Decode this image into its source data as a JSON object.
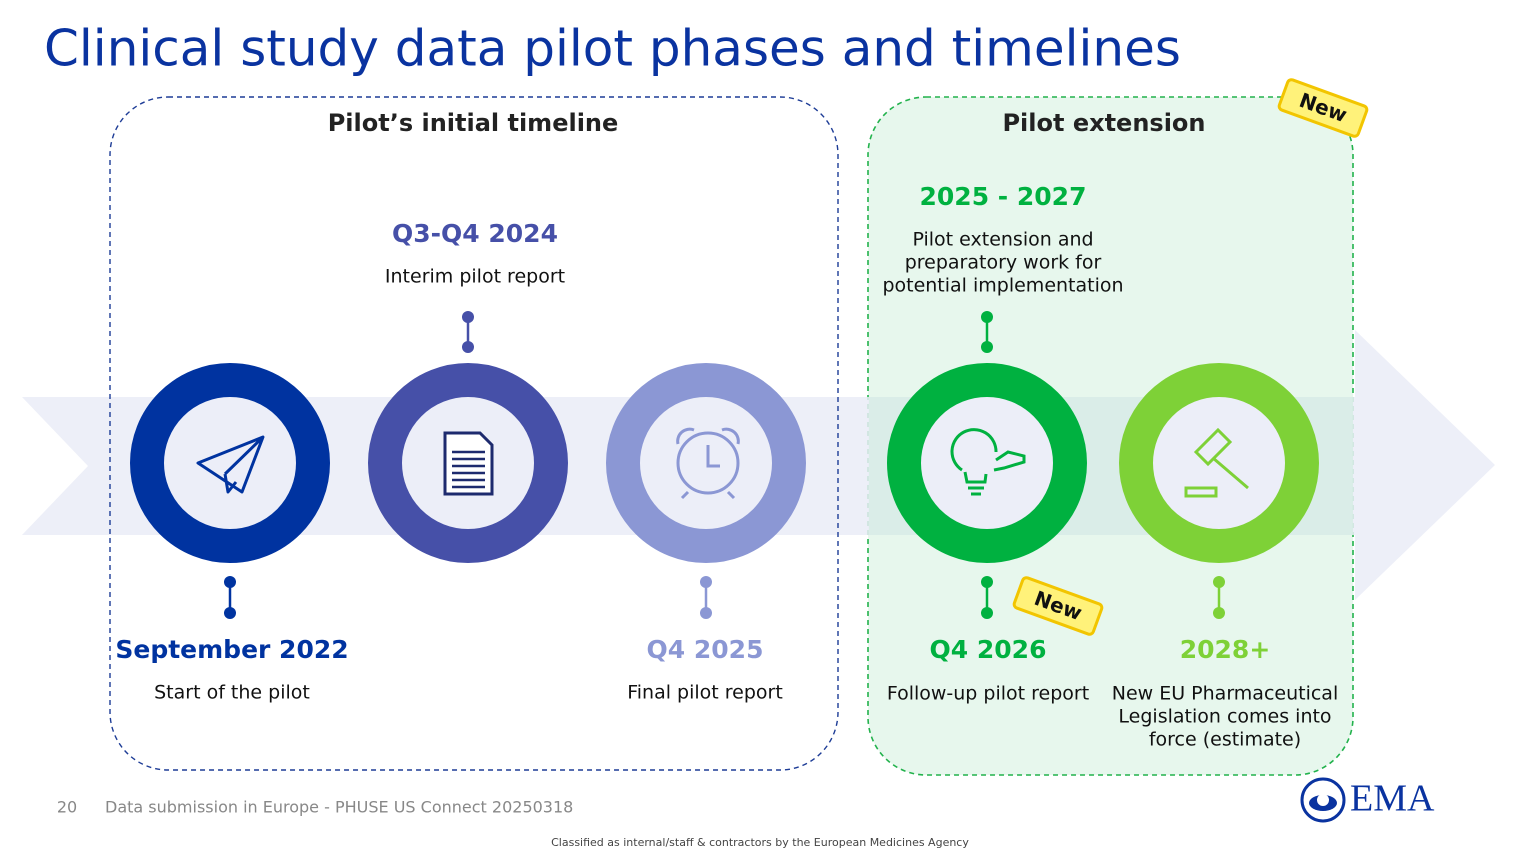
{
  "title": "Clinical study data pilot phases and timelines",
  "groups": [
    {
      "label": "Pilot’s initial timeline"
    },
    {
      "label": "Pilot extension",
      "badge": "New"
    }
  ],
  "milestones": [
    {
      "date": "September 2022",
      "description_lines": [
        "Start of the pilot"
      ]
    },
    {
      "date": "Q3-Q4 2024",
      "description_lines": [
        "Interim pilot report"
      ]
    },
    {
      "date": "Q4 2025",
      "description_lines": [
        "Final pilot report"
      ]
    },
    {
      "date": "2025 - 2027",
      "description_lines": [
        "Pilot extension and",
        "preparatory work for",
        "potential implementation"
      ]
    },
    {
      "date": "Q4 2026",
      "description_lines": [
        "Follow-up pilot report"
      ],
      "badge": "New"
    },
    {
      "date": "2028+",
      "description_lines": [
        "New EU Pharmaceutical",
        "Legislation comes into",
        "force (estimate)"
      ]
    }
  ],
  "footer": {
    "page_number": "20",
    "text": "Data submission in Europe - PHUSE US Connect 20250318",
    "classification": "Classified as internal/staff & contractors by the European Medicines Agency",
    "logo": "EMA"
  }
}
